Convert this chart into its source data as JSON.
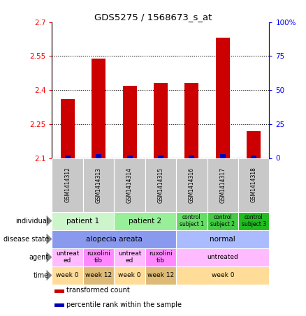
{
  "title": "GDS5275 / 1568673_s_at",
  "samples": [
    "GSM1414312",
    "GSM1414313",
    "GSM1414314",
    "GSM1414315",
    "GSM1414316",
    "GSM1414317",
    "GSM1414318"
  ],
  "transformed_count": [
    2.36,
    2.54,
    2.42,
    2.43,
    2.43,
    2.63,
    2.22
  ],
  "percentile_rank": [
    2,
    3,
    2,
    2,
    2,
    3,
    2
  ],
  "ylim": [
    2.1,
    2.7
  ],
  "yticks": [
    2.1,
    2.25,
    2.4,
    2.55,
    2.7
  ],
  "right_yticks": [
    0,
    25,
    50,
    75,
    100
  ],
  "bar_color": "#cc0000",
  "pct_color": "#0000bb",
  "sample_label_bg": "#c8c8c8",
  "annotation_rows": [
    {
      "label": "individual",
      "cells": [
        {
          "text": "patient 1",
          "span": 2,
          "bg": "#ccf5cc",
          "fontsize": 7.5
        },
        {
          "text": "patient 2",
          "span": 2,
          "bg": "#99ee99",
          "fontsize": 7.5
        },
        {
          "text": "control\nsubject 1",
          "span": 1,
          "bg": "#66dd66",
          "fontsize": 5.5
        },
        {
          "text": "control\nsubject 2",
          "span": 1,
          "bg": "#44cc44",
          "fontsize": 5.5
        },
        {
          "text": "control\nsubject 3",
          "span": 1,
          "bg": "#22bb22",
          "fontsize": 5.5
        }
      ]
    },
    {
      "label": "disease state",
      "cells": [
        {
          "text": "alopecia areata",
          "span": 4,
          "bg": "#8899ee",
          "fontsize": 7.5
        },
        {
          "text": "normal",
          "span": 3,
          "bg": "#aabbff",
          "fontsize": 7.5
        }
      ]
    },
    {
      "label": "agent",
      "cells": [
        {
          "text": "untreat\ned",
          "span": 1,
          "bg": "#ffbbff",
          "fontsize": 6.5
        },
        {
          "text": "ruxolini\ntib",
          "span": 1,
          "bg": "#ff88ff",
          "fontsize": 6.5
        },
        {
          "text": "untreat\ned",
          "span": 1,
          "bg": "#ffbbff",
          "fontsize": 6.5
        },
        {
          "text": "ruxolini\ntib",
          "span": 1,
          "bg": "#ff88ff",
          "fontsize": 6.5
        },
        {
          "text": "untreated",
          "span": 3,
          "bg": "#ffbbff",
          "fontsize": 6.5
        }
      ]
    },
    {
      "label": "time",
      "cells": [
        {
          "text": "week 0",
          "span": 1,
          "bg": "#ffdd99",
          "fontsize": 6.5
        },
        {
          "text": "week 12",
          "span": 1,
          "bg": "#ddbb77",
          "fontsize": 6.5
        },
        {
          "text": "week 0",
          "span": 1,
          "bg": "#ffdd99",
          "fontsize": 6.5
        },
        {
          "text": "week 12",
          "span": 1,
          "bg": "#ddbb77",
          "fontsize": 6.5
        },
        {
          "text": "week 0",
          "span": 3,
          "bg": "#ffdd99",
          "fontsize": 6.5
        }
      ]
    }
  ],
  "legend_items": [
    {
      "color": "#cc0000",
      "label": "transformed count"
    },
    {
      "color": "#0000bb",
      "label": "percentile rank within the sample"
    }
  ]
}
